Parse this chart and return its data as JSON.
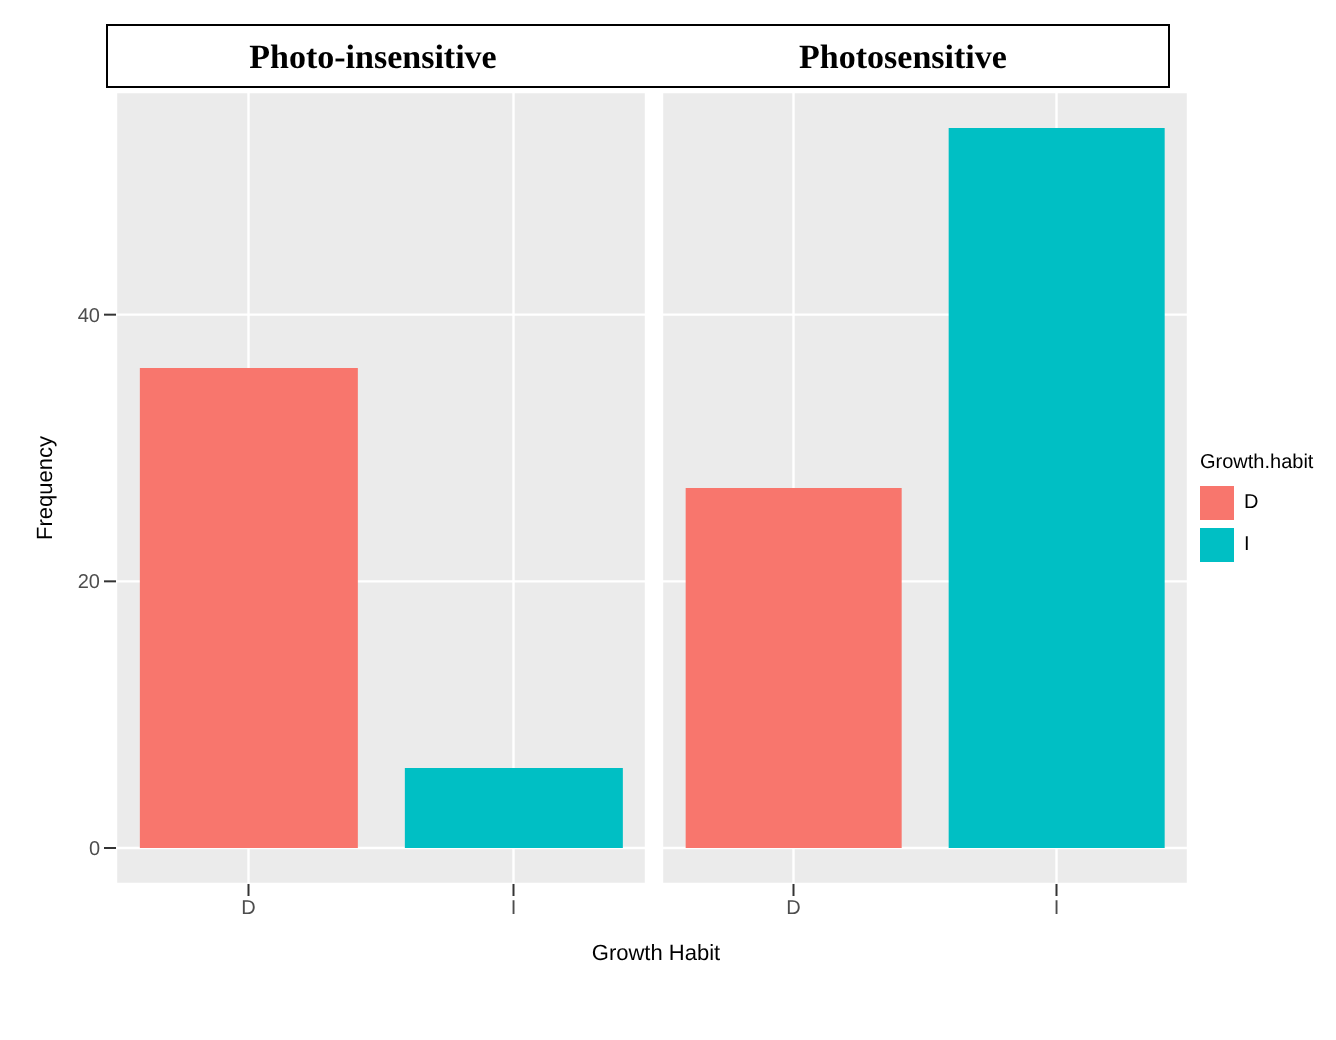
{
  "chart_data": [
    {
      "type": "bar",
      "title": "Photo-insensitive",
      "categories": [
        "D",
        "I"
      ],
      "ylabel": "Frequency",
      "xlabel": "Growth Habit",
      "ylim": [
        -2.7,
        56.7
      ],
      "yticks": [
        0,
        20,
        40
      ],
      "grid": true,
      "series": [
        {
          "colors": [
            "#f8766d",
            "#00bfc4"
          ],
          "values": [
            36,
            6
          ]
        }
      ]
    },
    {
      "type": "bar",
      "title": "Photosensitive",
      "categories": [
        "D",
        "I"
      ],
      "ylim": [
        -2.7,
        56.7
      ],
      "yticks": [
        0,
        20,
        40
      ],
      "grid": true,
      "tick_labels": "x",
      "legend": "right",
      "legend_title": "Growth.habit",
      "series": [
        {
          "name": "D",
          "color": "#f8766d",
          "values": [
            27,
            null
          ]
        },
        {
          "name": "I",
          "color": "#00bfc4",
          "values": [
            null,
            54
          ]
        }
      ]
    }
  ]
}
